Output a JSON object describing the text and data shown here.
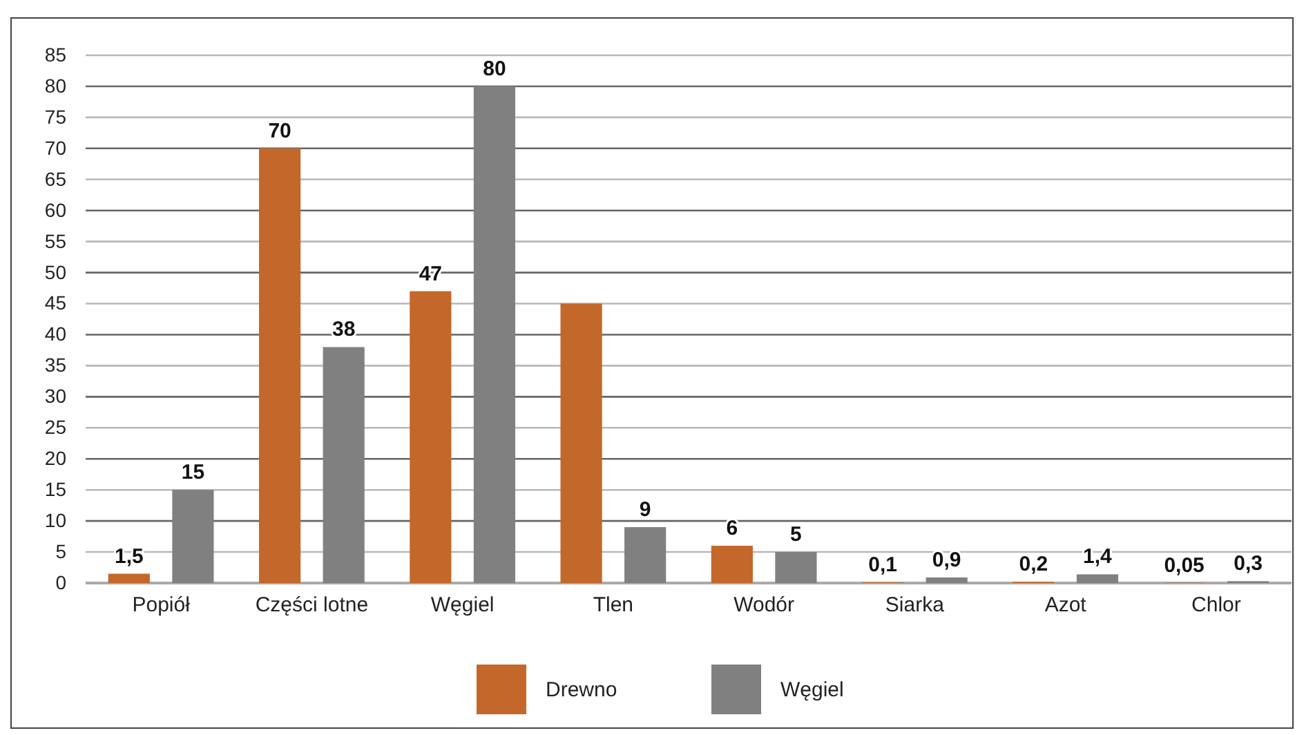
{
  "chart_data": {
    "type": "bar",
    "categories": [
      "Popiół",
      "Części lotne",
      "Węgiel",
      "Tlen",
      "Wodór",
      "Siarka",
      "Azot",
      "Chlor"
    ],
    "series": [
      {
        "name": "Drewno",
        "color": "#c4672a",
        "values": [
          1.5,
          70,
          47,
          45,
          6,
          0.1,
          0.2,
          0.05
        ],
        "value_labels": [
          "1,5",
          "70",
          "47",
          null,
          "6",
          "0,1",
          "0,2",
          "0,05"
        ]
      },
      {
        "name": "Węgiel",
        "color": "#808080",
        "values": [
          15,
          38,
          80,
          9,
          5,
          0.9,
          1.4,
          0.3
        ],
        "value_labels": [
          "15",
          "38",
          "80",
          "9",
          "5",
          "0,9",
          "1,4",
          "0,3"
        ]
      }
    ],
    "ylim": [
      0,
      85
    ],
    "yticks": [
      0,
      5,
      10,
      15,
      20,
      25,
      30,
      35,
      40,
      45,
      50,
      55,
      60,
      65,
      70,
      75,
      80,
      85
    ],
    "grid": "y",
    "legend": "bottom"
  }
}
